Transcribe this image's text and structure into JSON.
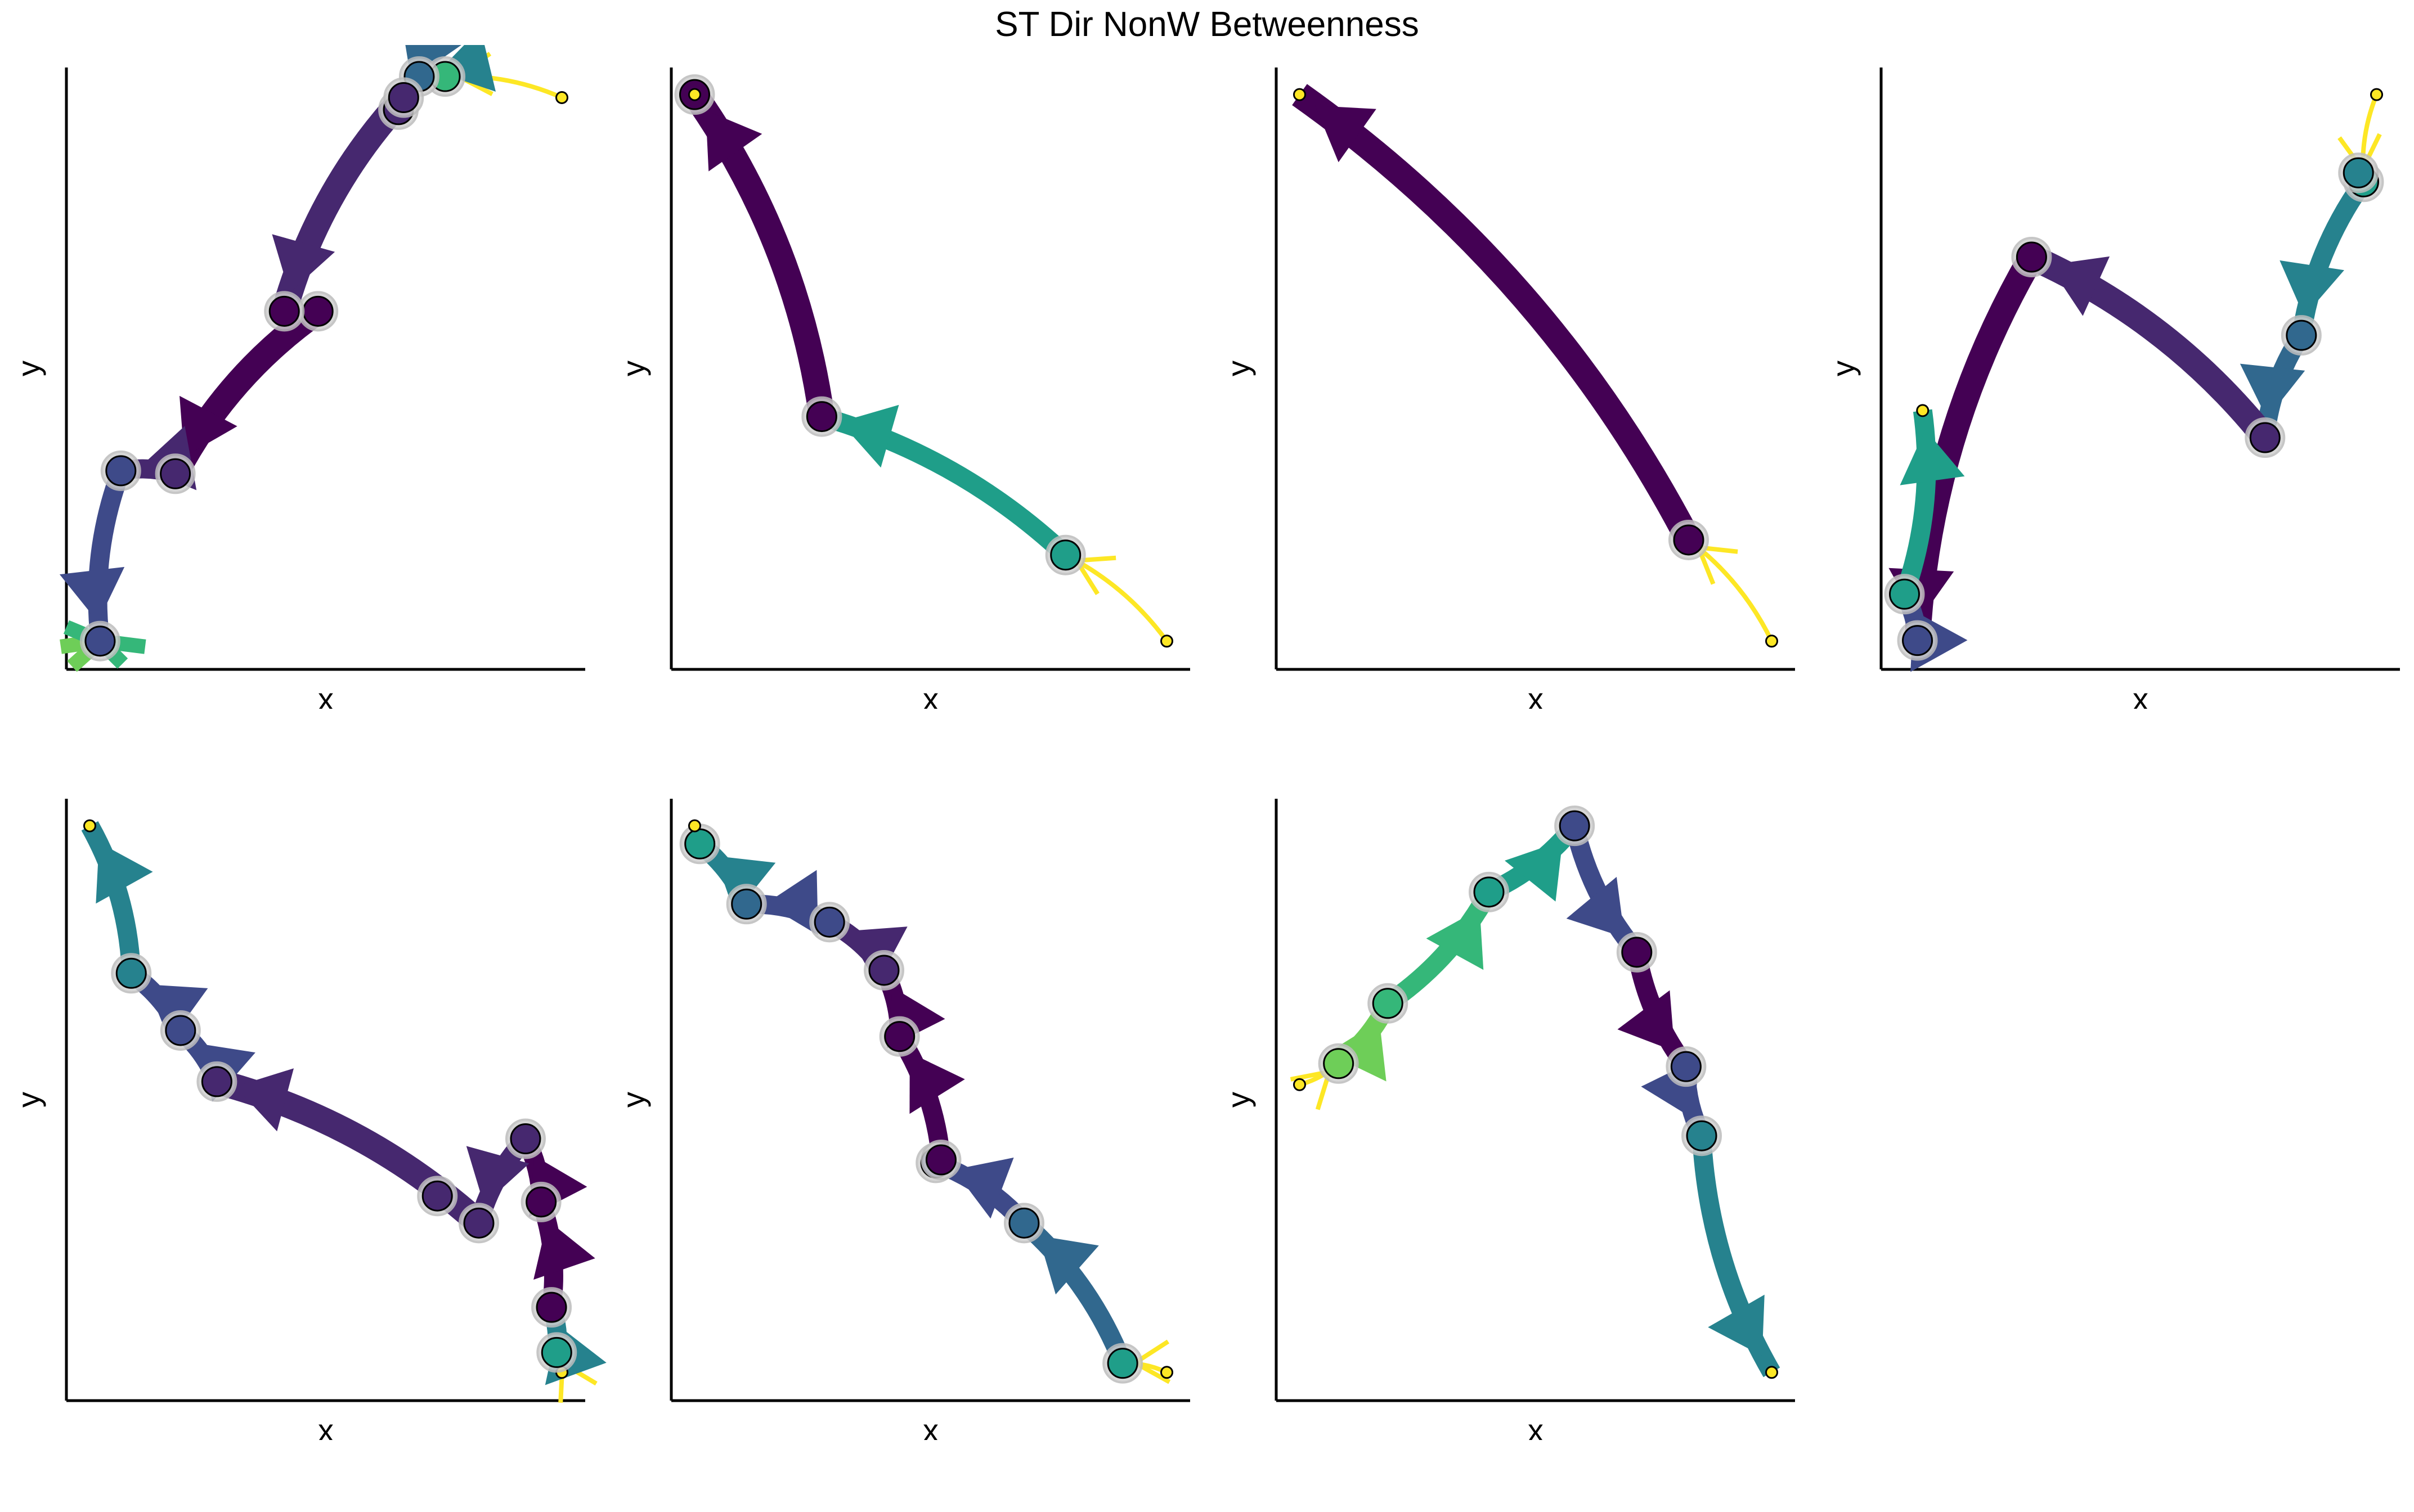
{
  "figure": {
    "title": "ST Dir NonW Betweenness",
    "colors": {
      "c0": "#440154",
      "c1": "#46286f",
      "c2": "#3e4a89",
      "c3": "#31688e",
      "c4": "#26828e",
      "c5": "#1f9e89",
      "c6": "#35b779",
      "c7": "#6ece58",
      "c8": "#fde725"
    }
  },
  "chart_data": [
    {
      "type": "network-trajectory",
      "xlabel": "x",
      "ylabel": "y",
      "nodes": [
        {
          "x": 0.955,
          "y": 0.95,
          "c": "c8",
          "size": "s"
        },
        {
          "x": 0.73,
          "y": 0.985,
          "c": "c6"
        },
        {
          "x": 0.68,
          "y": 0.985,
          "c": "c3"
        },
        {
          "x": 0.065,
          "y": 0.047,
          "c": "c2"
        },
        {
          "x": 0.21,
          "y": 0.325,
          "c": "c1"
        },
        {
          "x": 0.105,
          "y": 0.33,
          "c": "c2"
        },
        {
          "x": 0.485,
          "y": 0.595,
          "c": "c0"
        },
        {
          "x": 0.42,
          "y": 0.595,
          "c": "c0"
        },
        {
          "x": 0.64,
          "y": 0.93,
          "c": "c1"
        },
        {
          "x": 0.65,
          "y": 0.95,
          "c": "c1"
        }
      ],
      "edges": [
        {
          "from": 0,
          "to": 1,
          "c": "c8",
          "w": "thin"
        },
        {
          "from": 1,
          "to": 2,
          "c": "c4",
          "w": "mid"
        },
        {
          "from": 2,
          "to": 9,
          "c": "c3",
          "w": "mid"
        },
        {
          "from": 9,
          "to": 7,
          "c": "c1",
          "w": "thick"
        },
        {
          "from": 6,
          "to": 4,
          "c": "c0",
          "w": "thick"
        },
        {
          "from": 4,
          "to": 5,
          "c": "c1",
          "w": "mid"
        },
        {
          "from": 5,
          "to": 3,
          "c": "c2",
          "w": "mid"
        }
      ],
      "bursts": [
        {
          "x": 0.065,
          "y": 0.047
        }
      ]
    },
    {
      "type": "network-trajectory",
      "xlabel": "x",
      "ylabel": "y",
      "nodes": [
        {
          "x": 0.955,
          "y": 0.047,
          "c": "c8",
          "size": "s"
        },
        {
          "x": 0.76,
          "y": 0.19,
          "c": "c5"
        },
        {
          "x": 0.29,
          "y": 0.42,
          "c": "c0"
        },
        {
          "x": 0.045,
          "y": 0.955,
          "c": "c0"
        },
        {
          "x": 0.045,
          "y": 0.955,
          "c": "c8",
          "size": "s"
        }
      ],
      "edges": [
        {
          "from": 0,
          "to": 1,
          "c": "c8",
          "w": "thin"
        },
        {
          "from": 1,
          "to": 2,
          "c": "c5",
          "w": "mid"
        },
        {
          "from": 2,
          "to": 3,
          "c": "c0",
          "w": "thick"
        }
      ]
    },
    {
      "type": "network-trajectory",
      "xlabel": "x",
      "ylabel": "y",
      "nodes": [
        {
          "x": 0.955,
          "y": 0.047,
          "c": "c8",
          "size": "s"
        },
        {
          "x": 0.795,
          "y": 0.215,
          "c": "c0"
        },
        {
          "x": 0.045,
          "y": 0.955,
          "c": "c8",
          "size": "s"
        }
      ],
      "edges": [
        {
          "from": 0,
          "to": 1,
          "c": "c8",
          "w": "thin"
        },
        {
          "from": 1,
          "to": 2,
          "c": "c0",
          "w": "thick"
        }
      ]
    },
    {
      "type": "network-trajectory",
      "xlabel": "x",
      "ylabel": "y",
      "nodes": [
        {
          "x": 0.955,
          "y": 0.955,
          "c": "c8",
          "size": "s"
        },
        {
          "x": 0.93,
          "y": 0.81,
          "c": "c5"
        },
        {
          "x": 0.92,
          "y": 0.825,
          "c": "c4"
        },
        {
          "x": 0.81,
          "y": 0.555,
          "c": "c3"
        },
        {
          "x": 0.74,
          "y": 0.385,
          "c": "c1"
        },
        {
          "x": 0.29,
          "y": 0.685,
          "c": "c0"
        },
        {
          "x": 0.07,
          "y": 0.048,
          "c": "c2"
        },
        {
          "x": 0.045,
          "y": 0.125,
          "c": "c5"
        },
        {
          "x": 0.08,
          "y": 0.43,
          "c": "c8",
          "size": "s"
        }
      ],
      "edges": [
        {
          "from": 0,
          "to": 1,
          "c": "c8",
          "w": "thin"
        },
        {
          "from": 1,
          "to": 3,
          "c": "c4",
          "w": "mid"
        },
        {
          "from": 3,
          "to": 4,
          "c": "c3",
          "w": "mid"
        },
        {
          "from": 4,
          "to": 5,
          "c": "c1",
          "w": "thick"
        },
        {
          "from": 5,
          "to": 6,
          "c": "c0",
          "w": "thick"
        },
        {
          "from": 6,
          "to": 7,
          "c": "c2",
          "w": "mid"
        },
        {
          "from": 7,
          "to": 8,
          "c": "c5",
          "w": "mid"
        }
      ]
    },
    {
      "type": "network-trajectory",
      "xlabel": "x",
      "ylabel": "y",
      "nodes": [
        {
          "x": 0.955,
          "y": 0.047,
          "c": "c8",
          "size": "s"
        },
        {
          "x": 0.945,
          "y": 0.08,
          "c": "c5"
        },
        {
          "x": 0.935,
          "y": 0.155,
          "c": "c0"
        },
        {
          "x": 0.915,
          "y": 0.33,
          "c": "c0"
        },
        {
          "x": 0.885,
          "y": 0.435,
          "c": "c1"
        },
        {
          "x": 0.795,
          "y": 0.295,
          "c": "c1"
        },
        {
          "x": 0.715,
          "y": 0.34,
          "c": "c1"
        },
        {
          "x": 0.29,
          "y": 0.53,
          "c": "c1"
        },
        {
          "x": 0.22,
          "y": 0.615,
          "c": "c2"
        },
        {
          "x": 0.125,
          "y": 0.71,
          "c": "c4"
        },
        {
          "x": 0.045,
          "y": 0.955,
          "c": "c8",
          "size": "s"
        }
      ],
      "edges": [
        {
          "from": 0,
          "to": 1,
          "c": "c8",
          "w": "thin"
        },
        {
          "from": 1,
          "to": 2,
          "c": "c4",
          "w": "mid"
        },
        {
          "from": 2,
          "to": 3,
          "c": "c0",
          "w": "mid"
        },
        {
          "from": 3,
          "to": 4,
          "c": "c0",
          "w": "mid"
        },
        {
          "from": 4,
          "to": 5,
          "c": "c1",
          "w": "mid"
        },
        {
          "from": 5,
          "to": 7,
          "c": "c1",
          "w": "thick"
        },
        {
          "from": 7,
          "to": 8,
          "c": "c2",
          "w": "mid"
        },
        {
          "from": 8,
          "to": 9,
          "c": "c2",
          "w": "mid"
        },
        {
          "from": 9,
          "to": 10,
          "c": "c4",
          "w": "mid"
        }
      ]
    },
    {
      "type": "network-trajectory",
      "xlabel": "x",
      "ylabel": "y",
      "nodes": [
        {
          "x": 0.955,
          "y": 0.047,
          "c": "c8",
          "size": "s"
        },
        {
          "x": 0.87,
          "y": 0.062,
          "c": "c5"
        },
        {
          "x": 0.68,
          "y": 0.295,
          "c": "c3"
        },
        {
          "x": 0.51,
          "y": 0.395,
          "c": "c2"
        },
        {
          "x": 0.52,
          "y": 0.4,
          "c": "c0"
        },
        {
          "x": 0.44,
          "y": 0.605,
          "c": "c0"
        },
        {
          "x": 0.41,
          "y": 0.715,
          "c": "c1"
        },
        {
          "x": 0.305,
          "y": 0.795,
          "c": "c2"
        },
        {
          "x": 0.145,
          "y": 0.825,
          "c": "c3"
        },
        {
          "x": 0.055,
          "y": 0.925,
          "c": "c5"
        },
        {
          "x": 0.045,
          "y": 0.955,
          "c": "c8",
          "size": "s"
        }
      ],
      "edges": [
        {
          "from": 0,
          "to": 1,
          "c": "c8",
          "w": "thin"
        },
        {
          "from": 1,
          "to": 2,
          "c": "c3",
          "w": "mid"
        },
        {
          "from": 2,
          "to": 3,
          "c": "c2",
          "w": "mid"
        },
        {
          "from": 4,
          "to": 5,
          "c": "c0",
          "w": "mid"
        },
        {
          "from": 5,
          "to": 6,
          "c": "c0",
          "w": "mid"
        },
        {
          "from": 6,
          "to": 7,
          "c": "c1",
          "w": "mid"
        },
        {
          "from": 7,
          "to": 8,
          "c": "c2",
          "w": "mid"
        },
        {
          "from": 8,
          "to": 9,
          "c": "c4",
          "w": "mid"
        }
      ]
    },
    {
      "type": "network-trajectory",
      "xlabel": "x",
      "ylabel": "y",
      "nodes": [
        {
          "x": 0.045,
          "y": 0.525,
          "c": "c8",
          "size": "s"
        },
        {
          "x": 0.12,
          "y": 0.56,
          "c": "c7"
        },
        {
          "x": 0.215,
          "y": 0.66,
          "c": "c6"
        },
        {
          "x": 0.41,
          "y": 0.845,
          "c": "c5"
        },
        {
          "x": 0.575,
          "y": 0.955,
          "c": "c2"
        },
        {
          "x": 0.695,
          "y": 0.745,
          "c": "c0"
        },
        {
          "x": 0.79,
          "y": 0.555,
          "c": "c2"
        },
        {
          "x": 0.82,
          "y": 0.44,
          "c": "c4"
        },
        {
          "x": 0.955,
          "y": 0.047,
          "c": "c8",
          "size": "s"
        }
      ],
      "edges": [
        {
          "from": 0,
          "to": 1,
          "c": "c8",
          "w": "thin"
        },
        {
          "from": 1,
          "to": 2,
          "c": "c7",
          "w": "mid"
        },
        {
          "from": 2,
          "to": 3,
          "c": "c6",
          "w": "mid"
        },
        {
          "from": 3,
          "to": 4,
          "c": "c5",
          "w": "mid"
        },
        {
          "from": 4,
          "to": 5,
          "c": "c2",
          "w": "mid"
        },
        {
          "from": 5,
          "to": 6,
          "c": "c0",
          "w": "mid"
        },
        {
          "from": 6,
          "to": 7,
          "c": "c2",
          "w": "mid"
        },
        {
          "from": 7,
          "to": 8,
          "c": "c4",
          "w": "mid"
        }
      ]
    }
  ]
}
